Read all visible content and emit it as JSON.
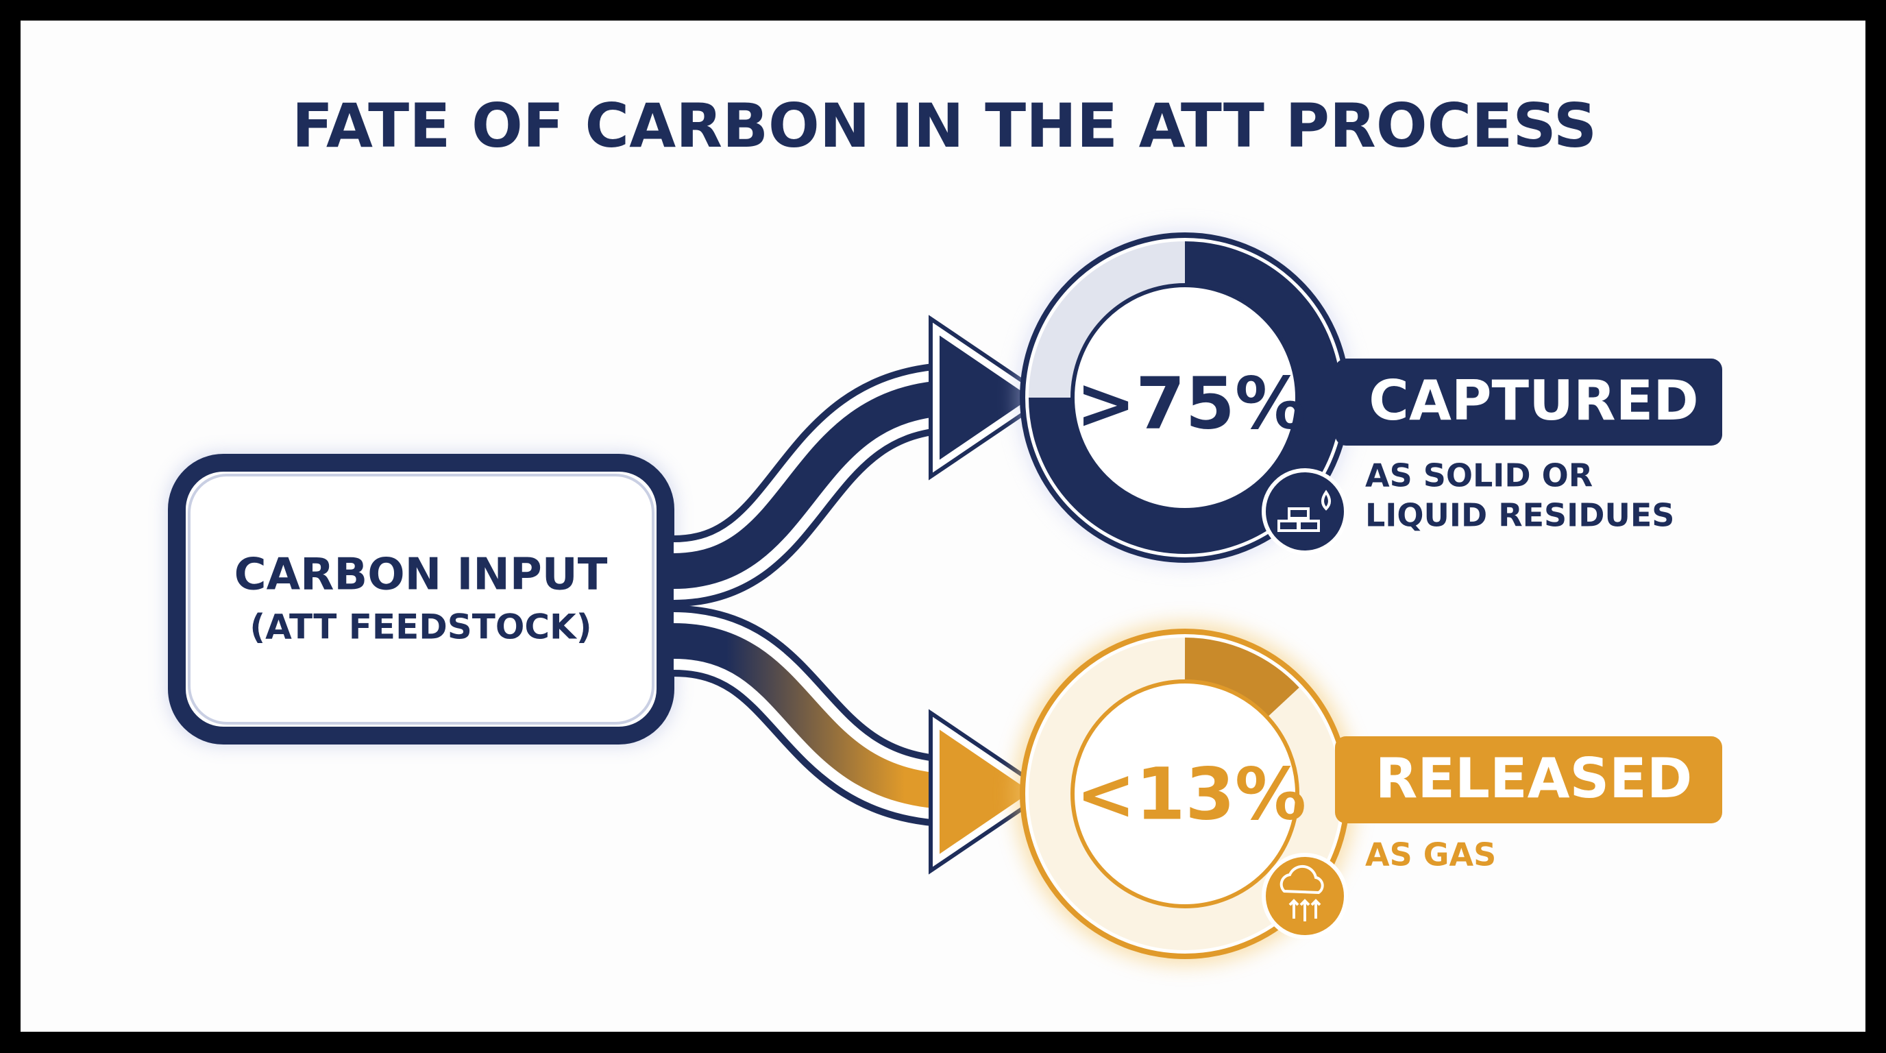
{
  "title": "FATE OF CARBON IN THE ATT PROCESS",
  "input": {
    "lines": [
      "CARBON INPUT",
      "(ATT FEEDSTOCK)"
    ]
  },
  "outputs": [
    {
      "percent": ">75%",
      "label": "CAPTURED",
      "description": [
        "AS SOLID OR",
        "LIQUID RESIDUES"
      ]
    },
    {
      "percent": "<13%",
      "label": "RELEASED",
      "description": [
        "AS GAS"
      ]
    }
  ]
}
